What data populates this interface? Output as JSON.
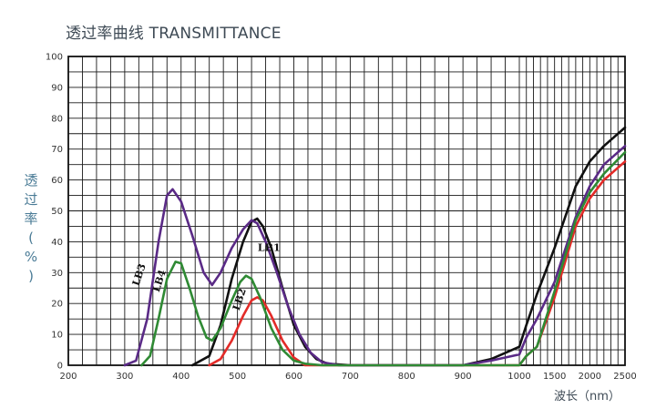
{
  "chart_data": {
    "type": "line",
    "title": "透过率曲线 TRANSMITTANCE",
    "ylabel_chars": [
      "透",
      "过",
      "率",
      "(",
      "%",
      ")"
    ],
    "xlabel": "波长（nm）",
    "x_ticks": [
      "200",
      "300",
      "400",
      "500",
      "600",
      "700",
      "800",
      "900",
      "1000",
      "1500",
      "2000",
      "2500"
    ],
    "y_ticks": [
      0,
      10,
      20,
      30,
      40,
      50,
      60,
      70,
      80,
      90,
      100
    ],
    "ylim": [
      0,
      100
    ],
    "grid": true,
    "legend": "inline-labels",
    "series": [
      {
        "name": "LB1",
        "color": "#111111",
        "points": [
          [
            420,
            0
          ],
          [
            450,
            3
          ],
          [
            470,
            13
          ],
          [
            490,
            28
          ],
          [
            510,
            40
          ],
          [
            525,
            46.5
          ],
          [
            535,
            47.5
          ],
          [
            545,
            45
          ],
          [
            560,
            38
          ],
          [
            580,
            25
          ],
          [
            600,
            13
          ],
          [
            620,
            6
          ],
          [
            640,
            2
          ],
          [
            660,
            0.5
          ],
          [
            700,
            0
          ],
          [
            900,
            0
          ],
          [
            950,
            2
          ],
          [
            1000,
            6
          ],
          [
            1100,
            13
          ],
          [
            1250,
            23
          ],
          [
            1500,
            38
          ],
          [
            1800,
            58
          ],
          [
            2000,
            66
          ],
          [
            2200,
            71
          ],
          [
            2500,
            77
          ]
        ]
      },
      {
        "name": "LB2",
        "color": "#e32b28",
        "points": [
          [
            450,
            0
          ],
          [
            470,
            2
          ],
          [
            490,
            8
          ],
          [
            510,
            16
          ],
          [
            525,
            21
          ],
          [
            535,
            22
          ],
          [
            545,
            21
          ],
          [
            560,
            16
          ],
          [
            580,
            8
          ],
          [
            600,
            2.5
          ],
          [
            620,
            0
          ],
          [
            700,
            0
          ],
          [
            1000,
            0
          ],
          [
            1100,
            3
          ],
          [
            1250,
            6
          ],
          [
            1500,
            22
          ],
          [
            1800,
            45
          ],
          [
            2000,
            54
          ],
          [
            2200,
            60
          ],
          [
            2500,
            66
          ]
        ]
      },
      {
        "name": "LB3",
        "color": "#5a2a86",
        "points": [
          [
            300,
            0
          ],
          [
            320,
            1.5
          ],
          [
            340,
            15
          ],
          [
            360,
            40
          ],
          [
            375,
            55
          ],
          [
            385,
            57
          ],
          [
            400,
            53
          ],
          [
            420,
            42
          ],
          [
            440,
            30
          ],
          [
            455,
            26
          ],
          [
            470,
            30
          ],
          [
            490,
            38
          ],
          [
            510,
            44
          ],
          [
            525,
            47
          ],
          [
            535,
            46
          ],
          [
            550,
            40
          ],
          [
            570,
            30
          ],
          [
            590,
            19
          ],
          [
            610,
            10
          ],
          [
            630,
            4
          ],
          [
            650,
            1
          ],
          [
            680,
            0
          ],
          [
            900,
            0
          ],
          [
            950,
            1.5
          ],
          [
            1000,
            3.5
          ],
          [
            1100,
            9
          ],
          [
            1250,
            15
          ],
          [
            1500,
            27
          ],
          [
            1800,
            48
          ],
          [
            2000,
            58
          ],
          [
            2200,
            65
          ],
          [
            2500,
            71
          ]
        ]
      },
      {
        "name": "LB4",
        "color": "#2f8a34",
        "points": [
          [
            330,
            0
          ],
          [
            345,
            3
          ],
          [
            360,
            15
          ],
          [
            375,
            28
          ],
          [
            390,
            33.5
          ],
          [
            400,
            33
          ],
          [
            415,
            25
          ],
          [
            430,
            16
          ],
          [
            445,
            9
          ],
          [
            455,
            8
          ],
          [
            470,
            12
          ],
          [
            490,
            21
          ],
          [
            505,
            27
          ],
          [
            515,
            29
          ],
          [
            525,
            28
          ],
          [
            540,
            22
          ],
          [
            560,
            12
          ],
          [
            580,
            5
          ],
          [
            600,
            1.5
          ],
          [
            620,
            0.5
          ],
          [
            650,
            0
          ],
          [
            1000,
            0
          ],
          [
            1100,
            3
          ],
          [
            1250,
            6
          ],
          [
            1500,
            24
          ],
          [
            1800,
            47
          ],
          [
            2000,
            56
          ],
          [
            2200,
            62
          ],
          [
            2500,
            69
          ]
        ]
      }
    ],
    "label_positions": {
      "LB1": [
        556,
        37
      ],
      "LB2": [
        509,
        21
      ],
      "LB3": [
        331,
        29
      ],
      "LB4": [
        367,
        27
      ]
    }
  }
}
